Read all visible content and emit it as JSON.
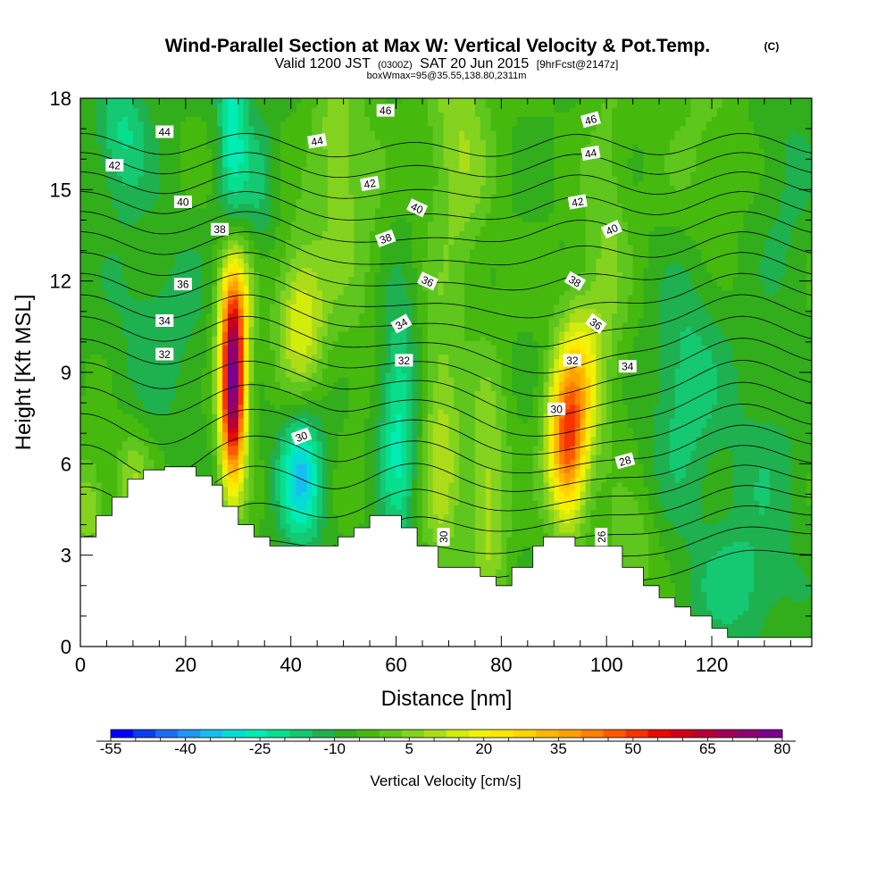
{
  "title": {
    "main": "Wind-Parallel Section at Max W: Vertical Velocity & Pot.Temp.",
    "copyright": "(C)",
    "sub_valid": "Valid 1200 JST",
    "sub_zulu": "(0300Z)",
    "sub_date": "SAT 20 Jun 2015",
    "sub_fcst": "[9hrFcst@2147z]",
    "sub_box": "boxWmax=95@35.55,138.80,2311m"
  },
  "chart_data": {
    "type": "heatmap",
    "xlabel": "Distance [nm]",
    "ylabel": "Height [Kft MSL]",
    "xlim": [
      0,
      139
    ],
    "ylim": [
      0,
      18
    ],
    "x_ticks": [
      {
        "value": 0,
        "label": "0"
      },
      {
        "value": 20,
        "label": "20"
      },
      {
        "value": 40,
        "label": "40"
      },
      {
        "value": 60,
        "label": "60"
      },
      {
        "value": 80,
        "label": "80"
      },
      {
        "value": 100,
        "label": "100"
      },
      {
        "value": 120,
        "label": "120"
      }
    ],
    "y_ticks": [
      {
        "value": 0,
        "label": "0"
      },
      {
        "value": 3,
        "label": "3"
      },
      {
        "value": 6,
        "label": "6"
      },
      {
        "value": 9,
        "label": "9"
      },
      {
        "value": 12,
        "label": "12"
      },
      {
        "value": 15,
        "label": "15"
      },
      {
        "value": 18,
        "label": "18"
      }
    ],
    "background_w": 0,
    "w_features": [
      {
        "x": 29,
        "y": 8.6,
        "sx": 1.7,
        "sy": 2.2,
        "w": 95
      },
      {
        "x": 29.5,
        "y": 11.5,
        "sx": 2.5,
        "sy": 1.5,
        "w": 20
      },
      {
        "x": 42,
        "y": 5.6,
        "sx": 3,
        "sy": 1.6,
        "w": -30
      },
      {
        "x": 42,
        "y": 10.8,
        "sx": 3.2,
        "sy": 1.8,
        "w": 25
      },
      {
        "x": 60.5,
        "y": 7.3,
        "sx": 2.6,
        "sy": 2.8,
        "w": -22
      },
      {
        "x": 68.5,
        "y": 6.5,
        "sx": 2.8,
        "sy": 3.2,
        "w": 18
      },
      {
        "x": 77.5,
        "y": 5.0,
        "sx": 2.6,
        "sy": 2.8,
        "w": 18
      },
      {
        "x": 92.5,
        "y": 6.6,
        "sx": 2.6,
        "sy": 1.8,
        "w": 55
      },
      {
        "x": 95,
        "y": 9.0,
        "sx": 3,
        "sy": 1.8,
        "w": 25
      },
      {
        "x": 29,
        "y": 17.2,
        "sx": 2,
        "sy": 2.8,
        "w": -22
      },
      {
        "x": 34,
        "y": 15.2,
        "sx": 2.2,
        "sy": 1.8,
        "w": -10
      },
      {
        "x": 8,
        "y": 16.8,
        "sx": 3.5,
        "sy": 1.6,
        "w": -16
      },
      {
        "x": 10,
        "y": 5.5,
        "sx": 2.5,
        "sy": 1.2,
        "w": 15
      },
      {
        "x": 1.5,
        "y": 4.6,
        "sx": 2,
        "sy": 1.2,
        "w": 15
      },
      {
        "x": 52,
        "y": 14,
        "sx": 4,
        "sy": 3.5,
        "w": 8
      },
      {
        "x": 72,
        "y": 16.5,
        "sx": 4,
        "sy": 3,
        "w": 15
      },
      {
        "x": 48,
        "y": 16.5,
        "sx": 3,
        "sy": 2.2,
        "w": 10
      },
      {
        "x": 100,
        "y": 13,
        "sx": 3,
        "sy": 4,
        "w": 10
      },
      {
        "x": 118,
        "y": 15.5,
        "sx": 5,
        "sy": 4,
        "w": 7
      },
      {
        "x": 125,
        "y": 2,
        "sx": 7,
        "sy": 1.5,
        "w": -12
      },
      {
        "x": 130,
        "y": 6,
        "sx": 6,
        "sy": 2,
        "w": -7
      },
      {
        "x": 114,
        "y": 8,
        "sx": 4,
        "sy": 2.5,
        "w": -10
      },
      {
        "x": 105,
        "y": 3,
        "sx": 3,
        "sy": 1.2,
        "w": 10
      },
      {
        "x": 15,
        "y": 10.5,
        "sx": 7,
        "sy": 2.5,
        "w": -8
      },
      {
        "x": 118,
        "y": 10.5,
        "sx": 5,
        "sy": 3,
        "w": -8
      },
      {
        "x": 134,
        "y": 15,
        "sx": 4,
        "sy": 3,
        "w": -6
      }
    ],
    "terrain": [
      [
        0,
        3.6
      ],
      [
        3,
        3.6
      ],
      [
        3,
        4.3
      ],
      [
        6,
        4.3
      ],
      [
        6,
        4.9
      ],
      [
        9,
        4.9
      ],
      [
        9,
        5.5
      ],
      [
        12,
        5.5
      ],
      [
        12,
        5.8
      ],
      [
        16,
        5.8
      ],
      [
        16,
        5.9
      ],
      [
        22,
        5.9
      ],
      [
        22,
        5.6
      ],
      [
        25,
        5.6
      ],
      [
        25,
        5.3
      ],
      [
        27,
        5.3
      ],
      [
        27,
        4.6
      ],
      [
        30,
        4.6
      ],
      [
        30,
        4.0
      ],
      [
        33,
        4.0
      ],
      [
        33,
        3.6
      ],
      [
        36,
        3.6
      ],
      [
        36,
        3.3
      ],
      [
        49,
        3.3
      ],
      [
        49,
        3.6
      ],
      [
        52,
        3.6
      ],
      [
        52,
        3.9
      ],
      [
        55,
        3.9
      ],
      [
        55,
        4.3
      ],
      [
        61,
        4.3
      ],
      [
        61,
        3.9
      ],
      [
        64,
        3.9
      ],
      [
        64,
        3.3
      ],
      [
        68,
        3.3
      ],
      [
        68,
        2.6
      ],
      [
        76,
        2.6
      ],
      [
        76,
        2.3
      ],
      [
        79,
        2.3
      ],
      [
        79,
        2.0
      ],
      [
        82,
        2.0
      ],
      [
        82,
        2.6
      ],
      [
        86,
        2.6
      ],
      [
        86,
        3.3
      ],
      [
        88,
        3.3
      ],
      [
        88,
        3.6
      ],
      [
        94,
        3.6
      ],
      [
        94,
        3.3
      ],
      [
        103,
        3.3
      ],
      [
        103,
        2.6
      ],
      [
        107,
        2.6
      ],
      [
        107,
        2.0
      ],
      [
        110,
        2.0
      ],
      [
        110,
        1.6
      ],
      [
        113,
        1.6
      ],
      [
        113,
        1.3
      ],
      [
        116,
        1.3
      ],
      [
        116,
        1.0
      ],
      [
        120,
        1.0
      ],
      [
        120,
        0.6
      ],
      [
        123,
        0.6
      ],
      [
        123,
        0.3
      ],
      [
        139,
        0.3
      ]
    ],
    "theta_levels": [
      26,
      27,
      28,
      29,
      30,
      31,
      32,
      33,
      34,
      35,
      36,
      37,
      38,
      39,
      40,
      41,
      42,
      43,
      44,
      45,
      46
    ],
    "contour_labels": [
      {
        "text": "46",
        "x": 58,
        "y": 17.6,
        "rot": 0
      },
      {
        "text": "46",
        "x": 97,
        "y": 17.3,
        "rot": -15
      },
      {
        "text": "44",
        "x": 16,
        "y": 16.9,
        "rot": 0
      },
      {
        "text": "44",
        "x": 45,
        "y": 16.6,
        "rot": -10
      },
      {
        "text": "44",
        "x": 97,
        "y": 16.2,
        "rot": -10
      },
      {
        "text": "42",
        "x": 6.5,
        "y": 15.8,
        "rot": 0
      },
      {
        "text": "42",
        "x": 55,
        "y": 15.2,
        "rot": -10
      },
      {
        "text": "42",
        "x": 94.5,
        "y": 14.6,
        "rot": -10
      },
      {
        "text": "40",
        "x": 19.5,
        "y": 14.6,
        "rot": 0
      },
      {
        "text": "40",
        "x": 64,
        "y": 14.4,
        "rot": 25
      },
      {
        "text": "40",
        "x": 101,
        "y": 13.7,
        "rot": -25
      },
      {
        "text": "38",
        "x": 26.5,
        "y": 13.7,
        "rot": 0
      },
      {
        "text": "38",
        "x": 58,
        "y": 13.4,
        "rot": -20
      },
      {
        "text": "38",
        "x": 94,
        "y": 12.0,
        "rot": 30
      },
      {
        "text": "36",
        "x": 19.5,
        "y": 11.9,
        "rot": 0
      },
      {
        "text": "36",
        "x": 66,
        "y": 12.0,
        "rot": 25
      },
      {
        "text": "36",
        "x": 98,
        "y": 10.6,
        "rot": 35
      },
      {
        "text": "34",
        "x": 16,
        "y": 10.7,
        "rot": 0
      },
      {
        "text": "34",
        "x": 61,
        "y": 10.6,
        "rot": -30
      },
      {
        "text": "34",
        "x": 104,
        "y": 9.2,
        "rot": 0
      },
      {
        "text": "32",
        "x": 16,
        "y": 9.6,
        "rot": 0
      },
      {
        "text": "32",
        "x": 61.5,
        "y": 9.4,
        "rot": 0
      },
      {
        "text": "32",
        "x": 93.5,
        "y": 9.4,
        "rot": 0
      },
      {
        "text": "30",
        "x": 42,
        "y": 6.9,
        "rot": -20
      },
      {
        "text": "30",
        "x": 90.5,
        "y": 7.8,
        "rot": 0
      },
      {
        "text": "30",
        "x": 69,
        "y": 3.6,
        "rot": -90
      },
      {
        "text": "28",
        "x": 103.5,
        "y": 6.1,
        "rot": -15
      },
      {
        "text": "26",
        "x": 99,
        "y": 3.6,
        "rot": -90
      }
    ],
    "colorbar": {
      "label": "Vertical Velocity [cm/s]",
      "tick_labels": [
        "-55",
        "-40",
        "-25",
        "-10",
        "5",
        "20",
        "35",
        "50",
        "65",
        "80"
      ],
      "tick_values": [
        -55,
        -40,
        -25,
        -10,
        5,
        20,
        35,
        50,
        65,
        80
      ],
      "range": [
        -55,
        80
      ],
      "bin_size": 5,
      "colors": [
        "#0000ff",
        "#0c3cf0",
        "#1d6df4",
        "#1e96f5",
        "#17bdf0",
        "#06dcd5",
        "#00ecb4",
        "#07df8e",
        "#14c971",
        "#1fb150",
        "#32ae1c",
        "#46b90f",
        "#5ec61c",
        "#83d31f",
        "#acdd18",
        "#d2ec0c",
        "#f0f305",
        "#ffe800",
        "#ffd200",
        "#ffb800",
        "#ffa000",
        "#ff8000",
        "#ff5a00",
        "#f53400",
        "#e60d00",
        "#d10018",
        "#b60036",
        "#a00055",
        "#8d006f",
        "#7a008d"
      ]
    }
  }
}
